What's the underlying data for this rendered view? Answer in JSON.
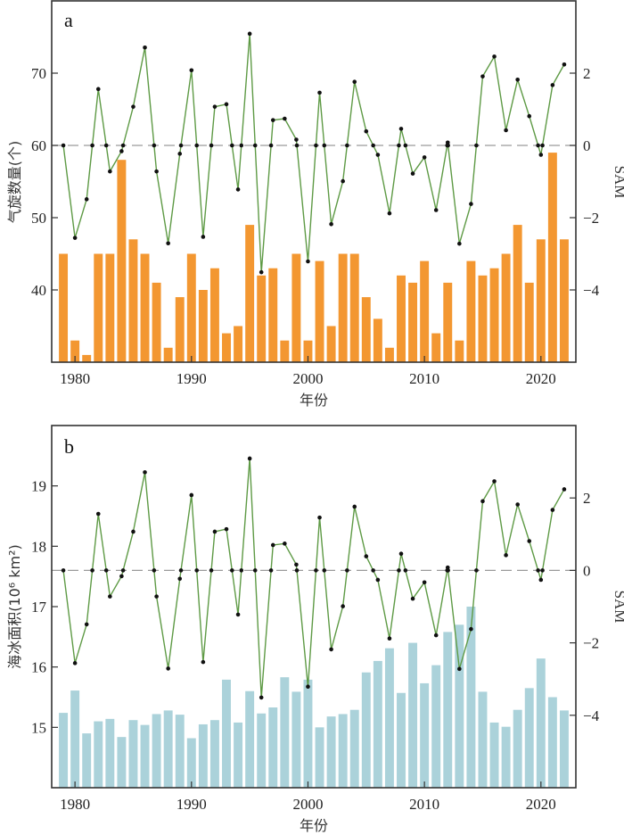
{
  "colors": {
    "cyclone_bar": "#F39731",
    "sea_ice_bar": "#ABD2DA",
    "sam_line": "#5E9A45",
    "sam_point": "#111111",
    "zero_line": "#9a9a9a",
    "frame": "#333333"
  },
  "chart_data": [
    {
      "panel": "a",
      "type": "bar+line",
      "title": "a",
      "xlabel": "年份",
      "ylabel": "气旋数量(个)",
      "y2label": "SAM",
      "xlim": [
        1978.0,
        2023.0
      ],
      "ylim": [
        30,
        80
      ],
      "y2lim": [
        -6,
        4
      ],
      "xticks": [
        1980,
        1990,
        2000,
        2010,
        2020
      ],
      "yticks": [
        40,
        50,
        60,
        70
      ],
      "y2ticks": [
        -4,
        -2,
        0,
        2
      ],
      "x": [
        1979,
        1980,
        1981,
        1982,
        1983,
        1984,
        1985,
        1986,
        1987,
        1988,
        1989,
        1990,
        1991,
        1992,
        1993,
        1994,
        1995,
        1996,
        1997,
        1998,
        1999,
        2000,
        2001,
        2002,
        2003,
        2004,
        2005,
        2006,
        2007,
        2008,
        2009,
        2010,
        2011,
        2012,
        2013,
        2014,
        2015,
        2016,
        2017,
        2018,
        2019,
        2020,
        2021,
        2022
      ],
      "series": [
        {
          "name": "气旋数量",
          "kind": "bar",
          "axis": "left",
          "values": [
            45,
            33,
            31,
            45,
            45,
            58,
            47,
            45,
            41,
            32,
            39,
            45,
            40,
            43,
            34,
            35,
            49,
            42,
            43,
            33,
            45,
            33,
            44,
            35,
            45,
            45,
            39,
            36,
            32,
            42,
            41,
            44,
            34,
            41,
            33,
            44,
            42,
            43,
            45,
            49,
            41,
            47,
            59,
            47
          ]
        },
        {
          "name": "SAM",
          "kind": "line",
          "axis": "right",
          "values": [
            0.0,
            -2.56,
            -1.49,
            1.56,
            -0.72,
            -0.16,
            1.07,
            2.71,
            -0.72,
            -2.71,
            -0.23,
            2.08,
            -2.53,
            1.07,
            1.14,
            -1.22,
            3.09,
            -3.51,
            0.7,
            0.74,
            0.16,
            -3.21,
            1.46,
            -2.18,
            -0.99,
            1.76,
            0.39,
            -0.26,
            -1.88,
            0.46,
            -0.78,
            -0.33,
            -1.79,
            0.08,
            -2.72,
            -1.62,
            1.91,
            2.46,
            0.42,
            1.82,
            0.81,
            -0.26,
            1.67,
            2.24
          ]
        }
      ],
      "reference_line": {
        "axis": "right",
        "value": 0,
        "style": "dashed"
      }
    },
    {
      "panel": "b",
      "type": "bar+line",
      "title": "b",
      "xlabel": "年份",
      "ylabel": "海冰面积(10⁶ km²)",
      "y2label": "SAM",
      "xlim": [
        1978.0,
        2023.0
      ],
      "ylim": [
        14,
        20
      ],
      "y2lim": [
        -6,
        4
      ],
      "xticks": [
        1980,
        1990,
        2000,
        2010,
        2020
      ],
      "yticks": [
        15,
        16,
        17,
        18,
        19
      ],
      "y2ticks": [
        -4,
        -2,
        0,
        2
      ],
      "x": [
        1979,
        1980,
        1981,
        1982,
        1983,
        1984,
        1985,
        1986,
        1987,
        1988,
        1989,
        1990,
        1991,
        1992,
        1993,
        1994,
        1995,
        1996,
        1997,
        1998,
        1999,
        2000,
        2001,
        2002,
        2003,
        2004,
        2005,
        2006,
        2007,
        2008,
        2009,
        2010,
        2011,
        2012,
        2013,
        2014,
        2015,
        2016,
        2017,
        2018,
        2019,
        2020,
        2021,
        2022
      ],
      "series": [
        {
          "name": "海冰面积",
          "kind": "bar",
          "axis": "left",
          "values": [
            15.24,
            15.61,
            14.9,
            15.1,
            15.14,
            14.84,
            15.12,
            15.04,
            15.22,
            15.28,
            15.21,
            14.82,
            15.05,
            15.12,
            15.79,
            15.08,
            15.6,
            15.23,
            15.33,
            15.83,
            15.59,
            15.79,
            15.0,
            15.18,
            15.22,
            15.29,
            15.91,
            16.1,
            16.31,
            15.57,
            16.4,
            15.73,
            16.03,
            16.58,
            16.7,
            17.0,
            15.59,
            15.08,
            15.01,
            15.29,
            15.65,
            16.14,
            15.5,
            15.28
          ]
        },
        {
          "name": "SAM",
          "kind": "line",
          "axis": "right",
          "values": [
            0.0,
            -2.56,
            -1.49,
            1.56,
            -0.72,
            -0.16,
            1.07,
            2.71,
            -0.72,
            -2.71,
            -0.23,
            2.08,
            -2.53,
            1.07,
            1.14,
            -1.22,
            3.09,
            -3.51,
            0.7,
            0.74,
            0.16,
            -3.21,
            1.46,
            -2.18,
            -0.99,
            1.76,
            0.39,
            -0.26,
            -1.88,
            0.46,
            -0.78,
            -0.33,
            -1.79,
            0.08,
            -2.72,
            -1.62,
            1.91,
            2.46,
            0.42,
            1.82,
            0.81,
            -0.26,
            1.67,
            2.24
          ]
        }
      ],
      "reference_line": {
        "axis": "right",
        "value": 0,
        "style": "dashed"
      }
    }
  ]
}
